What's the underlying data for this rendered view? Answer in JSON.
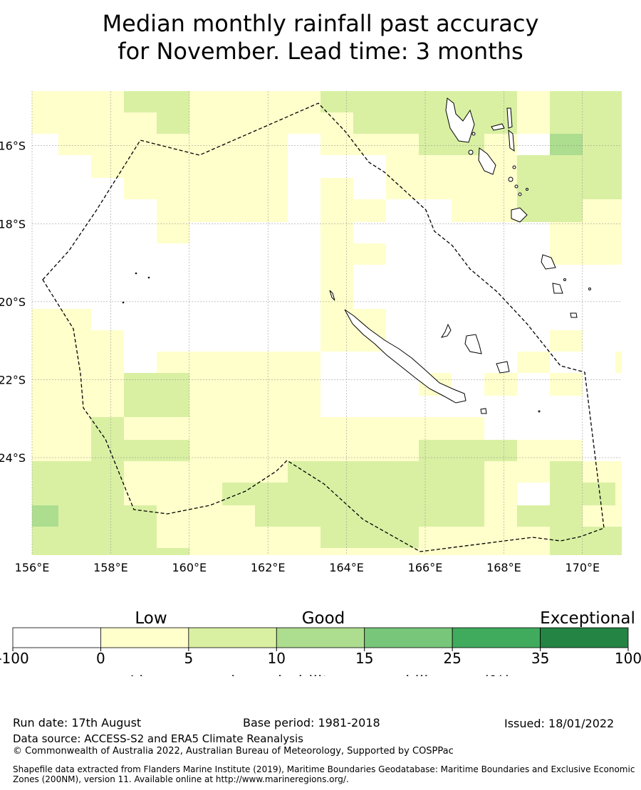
{
  "title": {
    "line1": "Median monthly rainfall past accuracy",
    "line2": "for November. Lead time: 3 months"
  },
  "map": {
    "lon_range": [
      156,
      171
    ],
    "lat_range": [
      -26.5,
      -14.6
    ],
    "lon_ticks": [
      156,
      158,
      160,
      162,
      164,
      166,
      168,
      170
    ],
    "lon_labels": [
      "156°E",
      "158°E",
      "160°E",
      "162°E",
      "164°E",
      "166°E",
      "168°E",
      "170°E"
    ],
    "lat_ticks": [
      -16,
      -18,
      -20,
      -22,
      -24
    ],
    "lat_labels": [
      "16°S",
      "18°S",
      "20°S",
      "22°S",
      "24°S"
    ]
  },
  "legend": {
    "category_labels": [
      "Low",
      "Good",
      "Exceptional"
    ],
    "boundaries": [
      "-100",
      "0",
      "5",
      "10",
      "15",
      "25",
      "35",
      "100"
    ],
    "colors": [
      "#ffffff",
      "#ffffcc",
      "#d9f0a3",
      "#addd8e",
      "#78c679",
      "#41ab5d",
      "#238443"
    ],
    "axis_label": "Linear error in probability space skill score (%)"
  },
  "footer": {
    "run_date": "Run date: 17th August",
    "base_period": "Base period: 1981-2018",
    "issued": "Issued: 18/01/2022",
    "data_source": "Data source: ACCESS-S2 and ERA5 Climate Reanalysis",
    "copyright": "© Commonwealth of Australia 2022, Australian Bureau of Meteorology, Supported by COSPPac",
    "shapefile": "Shapefile data extracted from Flanders Marine Institute (2019), Maritime Boundaries Geodatabase: Maritime Boundaries and Exclusive Economic Zones (200NM), version 11. Available online at http://www.marineregions.org/."
  }
}
